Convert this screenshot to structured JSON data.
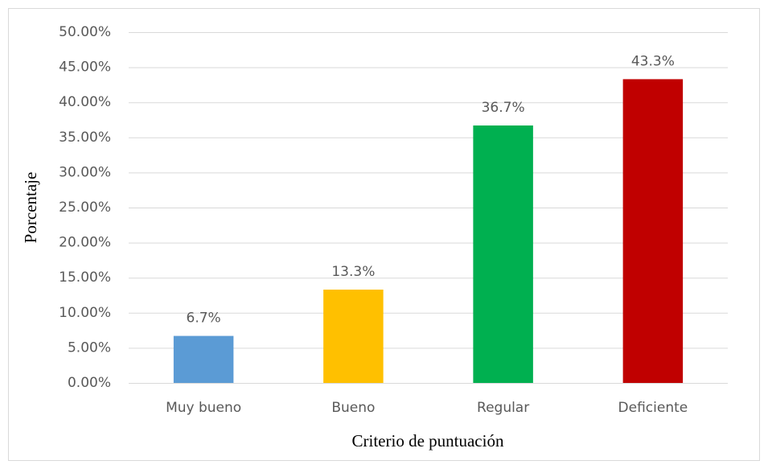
{
  "chart_data": {
    "type": "bar",
    "x_label": "Criterio de puntuación",
    "y_label": "Porcentaje",
    "categories": [
      "Muy bueno",
      "Bueno",
      "Regular",
      "Deficiente"
    ],
    "values": [
      6.7,
      13.3,
      36.7,
      43.3
    ],
    "value_labels": [
      "6.7%",
      "13.3%",
      "36.7%",
      "43.3%"
    ],
    "colors": [
      "#5b9bd5",
      "#ffc000",
      "#00b050",
      "#c00000"
    ],
    "ylim": [
      0,
      50
    ],
    "yticks": [
      {
        "value": 0,
        "label": "0.00%"
      },
      {
        "value": 5,
        "label": "5.00%"
      },
      {
        "value": 10,
        "label": "10.00%"
      },
      {
        "value": 15,
        "label": "15.00%"
      },
      {
        "value": 20,
        "label": "20.00%"
      },
      {
        "value": 25,
        "label": "25.00%"
      },
      {
        "value": 30,
        "label": "30.00%"
      },
      {
        "value": 35,
        "label": "35.00%"
      },
      {
        "value": 40,
        "label": "40.00%"
      },
      {
        "value": 45,
        "label": "45.00%"
      },
      {
        "value": 50,
        "label": "50.00%"
      }
    ],
    "grid": true
  }
}
